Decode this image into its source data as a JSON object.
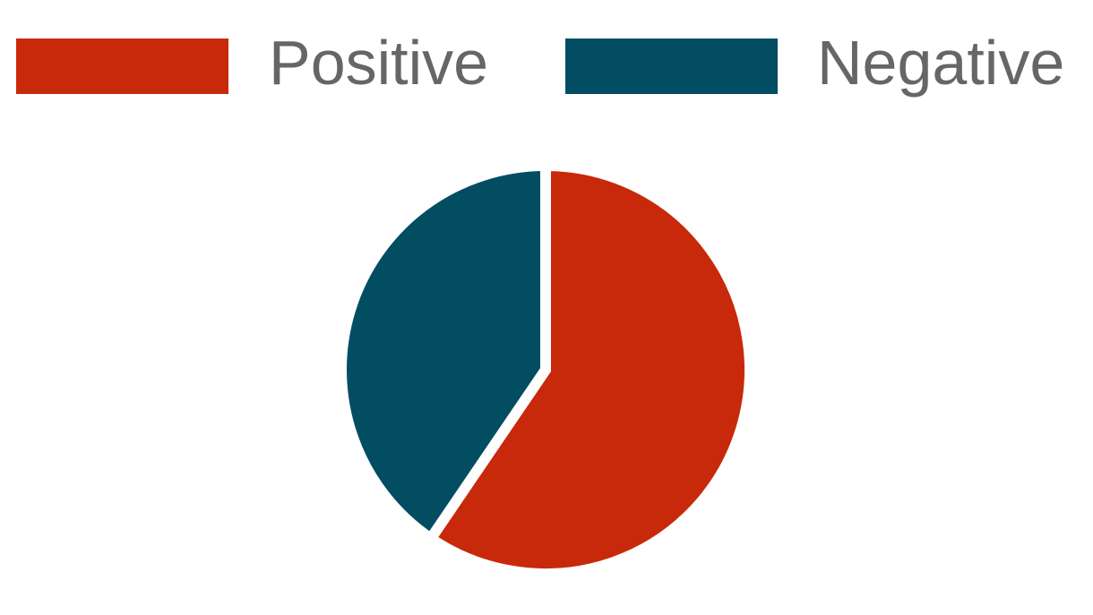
{
  "chart_data": {
    "type": "pie",
    "title": "",
    "legend": "top",
    "slices": [
      {
        "label": "Positive",
        "value": 59.5,
        "color": "#c8290a"
      },
      {
        "label": "Negative",
        "value": 40.5,
        "color": "#034d63"
      }
    ]
  }
}
